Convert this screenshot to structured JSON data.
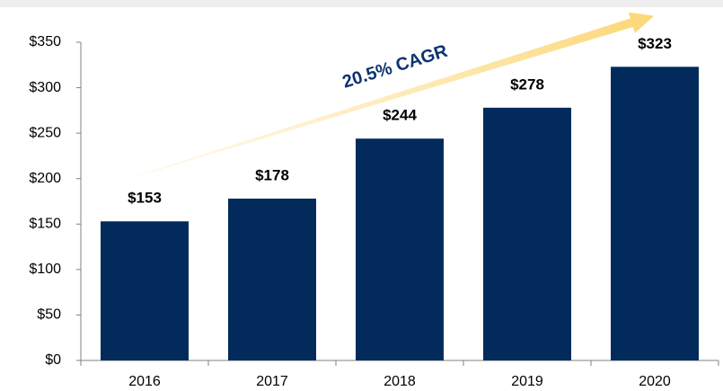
{
  "chart_data": {
    "type": "bar",
    "categories": [
      "2016",
      "2017",
      "2018",
      "2019",
      "2020"
    ],
    "values": [
      153,
      178,
      244,
      278,
      323
    ],
    "value_labels": [
      "$153",
      "$178",
      "$244",
      "$278",
      "$323"
    ],
    "color": "#022b5c",
    "ylim": [
      0,
      350
    ],
    "yticks": [
      {
        "value": 0,
        "label": "$0"
      },
      {
        "value": 50,
        "label": "$50"
      },
      {
        "value": 100,
        "label": "$100"
      },
      {
        "value": 150,
        "label": "$150"
      },
      {
        "value": 200,
        "label": "$200"
      },
      {
        "value": 250,
        "label": "$250"
      },
      {
        "value": 300,
        "label": "$300"
      },
      {
        "value": 350,
        "label": "$350"
      }
    ],
    "grid": false,
    "annotation": "20.5% CAGR"
  }
}
